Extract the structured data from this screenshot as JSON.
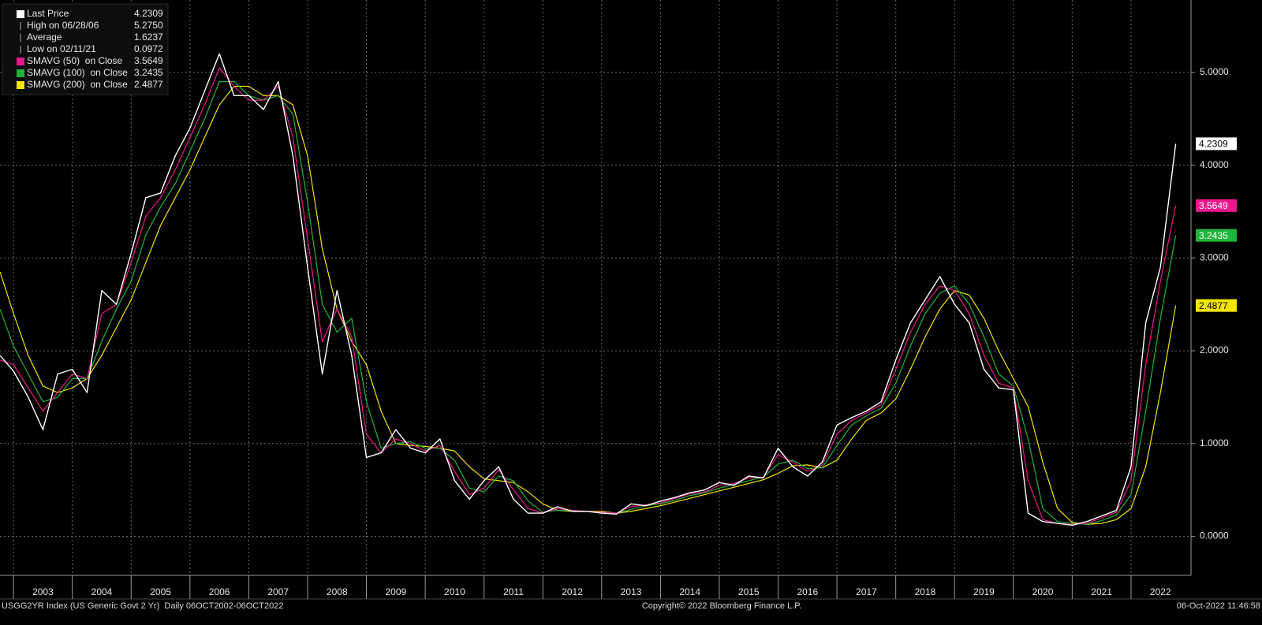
{
  "chart_data": {
    "type": "line",
    "x": [
      2002.77,
      2003,
      2003.25,
      2003.5,
      2003.75,
      2004,
      2004.25,
      2004.5,
      2004.75,
      2005,
      2005.25,
      2005.5,
      2005.75,
      2006,
      2006.25,
      2006.5,
      2006.75,
      2007,
      2007.25,
      2007.5,
      2007.75,
      2008,
      2008.25,
      2008.5,
      2008.75,
      2009,
      2009.25,
      2009.5,
      2009.75,
      2010,
      2010.25,
      2010.5,
      2010.75,
      2011,
      2011.25,
      2011.5,
      2011.75,
      2012,
      2012.25,
      2012.5,
      2012.75,
      2013,
      2013.25,
      2013.5,
      2013.75,
      2014,
      2014.25,
      2014.5,
      2014.75,
      2015,
      2015.25,
      2015.5,
      2015.75,
      2016,
      2016.25,
      2016.5,
      2016.75,
      2017,
      2017.25,
      2017.5,
      2017.75,
      2018,
      2018.25,
      2018.5,
      2018.75,
      2019,
      2019.25,
      2019.5,
      2019.75,
      2020,
      2020.25,
      2020.5,
      2020.75,
      2021,
      2021.25,
      2021.5,
      2021.75,
      2022,
      2022.25,
      2022.5,
      2022.76
    ],
    "xlim": [
      2002.77,
      2023.02
    ],
    "xticks": [
      2003,
      2004,
      2005,
      2006,
      2007,
      2008,
      2009,
      2010,
      2011,
      2012,
      2013,
      2014,
      2015,
      2016,
      2017,
      2018,
      2019,
      2020,
      2021,
      2022
    ],
    "ylim": [
      -0.42,
      5.78
    ],
    "yticks": [
      {
        "value": 0,
        "label": "0.0000"
      },
      {
        "value": 1,
        "label": "1.0000"
      },
      {
        "value": 2,
        "label": "2.0000"
      },
      {
        "value": 3,
        "label": "3.0000"
      },
      {
        "value": 4,
        "label": "4.0000"
      },
      {
        "value": 5,
        "label": "5.0000"
      }
    ],
    "grid": true,
    "series": [
      {
        "name": "Last Price",
        "color": "#ffffff",
        "values": [
          1.95,
          1.78,
          1.5,
          1.15,
          1.75,
          1.8,
          1.55,
          2.65,
          2.5,
          3.05,
          3.65,
          3.7,
          4.1,
          4.4,
          4.8,
          5.2,
          4.75,
          4.75,
          4.6,
          4.9,
          4.1,
          2.9,
          1.75,
          2.65,
          1.95,
          0.85,
          0.9,
          1.15,
          0.95,
          0.9,
          1.05,
          0.6,
          0.4,
          0.6,
          0.75,
          0.4,
          0.25,
          0.25,
          0.32,
          0.27,
          0.27,
          0.25,
          0.24,
          0.35,
          0.33,
          0.38,
          0.42,
          0.47,
          0.5,
          0.58,
          0.55,
          0.65,
          0.63,
          0.95,
          0.75,
          0.65,
          0.8,
          1.2,
          1.28,
          1.35,
          1.45,
          1.9,
          2.3,
          2.55,
          2.8,
          2.5,
          2.3,
          1.8,
          1.6,
          1.58,
          0.25,
          0.16,
          0.14,
          0.12,
          0.16,
          0.22,
          0.28,
          0.75,
          2.3,
          2.9,
          4.2309
        ]
      },
      {
        "name": "SMAVG (50)  on Close",
        "color": "#e8198c",
        "values": [
          1.9,
          1.85,
          1.6,
          1.35,
          1.55,
          1.75,
          1.7,
          2.4,
          2.5,
          2.95,
          3.45,
          3.65,
          3.95,
          4.3,
          4.65,
          5.05,
          4.85,
          4.7,
          4.7,
          4.85,
          4.3,
          3.2,
          2.1,
          2.45,
          2.15,
          1.1,
          0.9,
          1.05,
          1.0,
          0.92,
          0.98,
          0.7,
          0.45,
          0.52,
          0.72,
          0.5,
          0.3,
          0.25,
          0.3,
          0.28,
          0.27,
          0.26,
          0.25,
          0.32,
          0.34,
          0.36,
          0.41,
          0.46,
          0.48,
          0.55,
          0.57,
          0.63,
          0.64,
          0.88,
          0.8,
          0.7,
          0.77,
          1.1,
          1.25,
          1.33,
          1.42,
          1.8,
          2.2,
          2.5,
          2.7,
          2.65,
          2.4,
          1.95,
          1.65,
          1.6,
          0.6,
          0.18,
          0.14,
          0.13,
          0.14,
          0.2,
          0.26,
          0.6,
          1.85,
          2.75,
          3.5649
        ]
      },
      {
        "name": "SMAVG (100)  on Close",
        "color": "#1fb53a",
        "values": [
          2.45,
          2.05,
          1.75,
          1.45,
          1.5,
          1.7,
          1.7,
          2.1,
          2.45,
          2.75,
          3.25,
          3.55,
          3.8,
          4.15,
          4.5,
          4.9,
          4.9,
          4.75,
          4.7,
          4.75,
          4.55,
          3.6,
          2.5,
          2.2,
          2.35,
          1.45,
          0.95,
          1.0,
          1.02,
          0.95,
          0.95,
          0.82,
          0.52,
          0.48,
          0.65,
          0.6,
          0.38,
          0.26,
          0.28,
          0.28,
          0.27,
          0.26,
          0.25,
          0.29,
          0.33,
          0.35,
          0.39,
          0.44,
          0.47,
          0.52,
          0.56,
          0.6,
          0.64,
          0.78,
          0.82,
          0.73,
          0.74,
          0.98,
          1.2,
          1.3,
          1.38,
          1.65,
          2.05,
          2.4,
          2.62,
          2.7,
          2.5,
          2.15,
          1.75,
          1.62,
          1.05,
          0.3,
          0.16,
          0.14,
          0.13,
          0.17,
          0.23,
          0.45,
          1.35,
          2.35,
          3.2435
        ]
      },
      {
        "name": "SMAVG (200)  on Close",
        "color": "#f2e600",
        "values": [
          2.85,
          2.4,
          1.95,
          1.62,
          1.55,
          1.6,
          1.7,
          1.95,
          2.25,
          2.55,
          2.95,
          3.35,
          3.65,
          3.95,
          4.3,
          4.65,
          4.85,
          4.85,
          4.75,
          4.75,
          4.65,
          4.1,
          3.1,
          2.45,
          2.1,
          1.85,
          1.35,
          1.0,
          0.98,
          0.97,
          0.95,
          0.92,
          0.75,
          0.62,
          0.6,
          0.58,
          0.48,
          0.35,
          0.28,
          0.27,
          0.27,
          0.27,
          0.25,
          0.27,
          0.3,
          0.33,
          0.37,
          0.41,
          0.45,
          0.49,
          0.53,
          0.57,
          0.61,
          0.68,
          0.76,
          0.77,
          0.74,
          0.82,
          1.05,
          1.25,
          1.33,
          1.48,
          1.8,
          2.15,
          2.45,
          2.65,
          2.6,
          2.35,
          2.0,
          1.7,
          1.4,
          0.8,
          0.3,
          0.15,
          0.13,
          0.14,
          0.18,
          0.3,
          0.75,
          1.55,
          2.4877
        ]
      }
    ],
    "stats": [
      {
        "name": "High on 06/28/06",
        "value": "5.2750"
      },
      {
        "name": "Average",
        "value": "1.6237"
      },
      {
        "name": "Low on 02/11/21",
        "value": "0.0972"
      }
    ]
  },
  "footer": {
    "left": "USGG2YR Index (US Generic Govt 2 Yr)  Daily 06OCT2002-06OCT2022",
    "center": "Copyright© 2022 Bloomberg Finance L.P.",
    "right": "06-Oct-2022 11:46:58"
  }
}
